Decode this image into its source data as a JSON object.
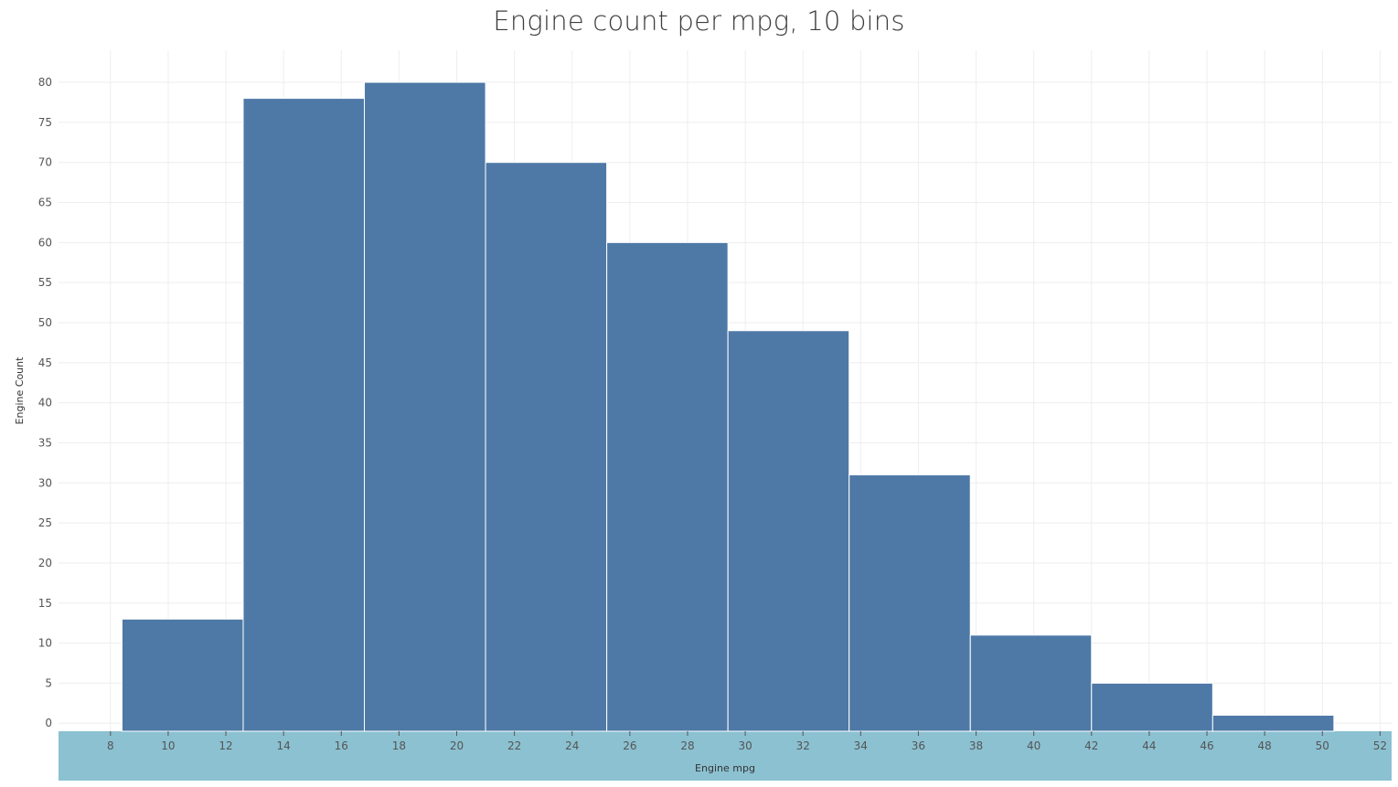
{
  "chart_data": {
    "type": "bar",
    "title": "Engine count per mpg, 10 bins",
    "xlabel": "Engine mpg",
    "ylabel": "Engine Count",
    "bins": [
      {
        "start": 8.4,
        "end": 12.6,
        "count": 13
      },
      {
        "start": 12.6,
        "end": 16.8,
        "count": 78
      },
      {
        "start": 16.8,
        "end": 21.0,
        "count": 80
      },
      {
        "start": 21.0,
        "end": 25.2,
        "count": 70
      },
      {
        "start": 25.2,
        "end": 29.4,
        "count": 60
      },
      {
        "start": 29.4,
        "end": 33.6,
        "count": 49
      },
      {
        "start": 33.6,
        "end": 37.8,
        "count": 31
      },
      {
        "start": 37.8,
        "end": 42.0,
        "count": 11
      },
      {
        "start": 42.0,
        "end": 46.2,
        "count": 5
      },
      {
        "start": 46.2,
        "end": 50.4,
        "count": 1
      }
    ],
    "xlim": [
      6.2,
      52.4
    ],
    "ylim": [
      -1,
      84
    ],
    "xticks": [
      8,
      10,
      12,
      14,
      16,
      18,
      20,
      22,
      24,
      26,
      28,
      30,
      32,
      34,
      36,
      38,
      40,
      42,
      44,
      46,
      48,
      50,
      52
    ],
    "yticks": [
      0,
      5,
      10,
      15,
      20,
      25,
      30,
      35,
      40,
      45,
      50,
      55,
      60,
      65,
      70,
      75,
      80
    ],
    "grid": true,
    "legend": "none",
    "colors": {
      "bar": "#4e79a7",
      "bar_border": "#ffffff",
      "x_axis_band": "#8bc1d1",
      "grid": "#eeeeee"
    }
  }
}
